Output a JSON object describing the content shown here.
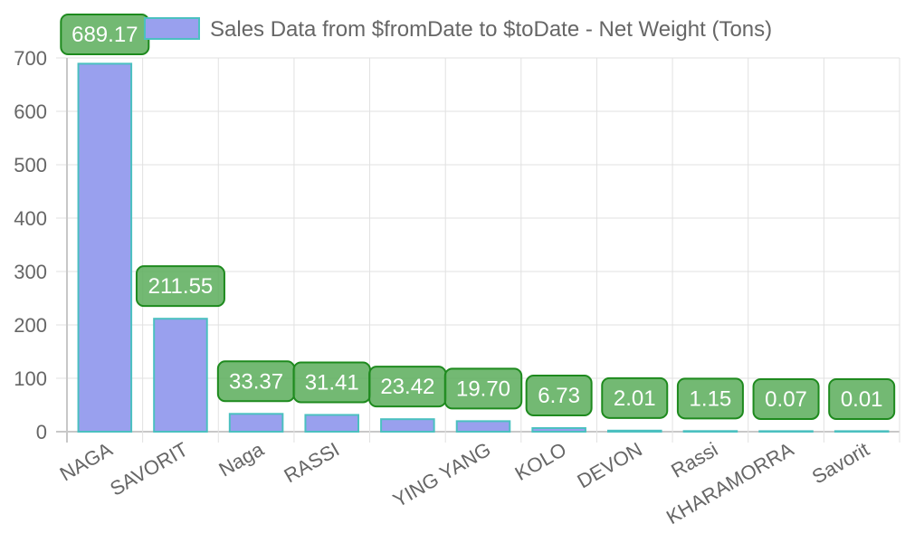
{
  "chart_data": {
    "type": "bar",
    "legend_position": "top",
    "series": [
      {
        "name": "Sales Data from $fromDate to $toDate - Net Weight (Tons)",
        "values": [
          689.17,
          211.55,
          33.37,
          31.41,
          23.42,
          19.7,
          6.73,
          2.01,
          1.15,
          0.07,
          0.01
        ],
        "labels": [
          "689.17",
          "211.55",
          "33.37",
          "31.41",
          "23.42",
          "19.70",
          "6.73",
          "2.01",
          "1.15",
          "0.07",
          "0.01"
        ]
      }
    ],
    "categories": [
      "NAGA",
      "SAVORIT",
      "Naga",
      "RASSI",
      "",
      "YING YANG",
      "KOLO",
      "DEVON",
      "Rassi",
      "KHARAMORRA",
      "Savorit"
    ],
    "yticks": [
      "0",
      "100",
      "200",
      "300",
      "400",
      "500",
      "600",
      "700"
    ],
    "ylim": [
      0,
      700
    ],
    "grid": true,
    "colors": {
      "bar_fill": "#99a0ee",
      "bar_border": "#4bc0c0",
      "label_fill": "#5aad5a",
      "label_border": "#1e8a1e",
      "label_text": "#ffffff",
      "grid": "#e1e1e1",
      "axis": "#c8c8c8",
      "text": "#666666"
    }
  }
}
